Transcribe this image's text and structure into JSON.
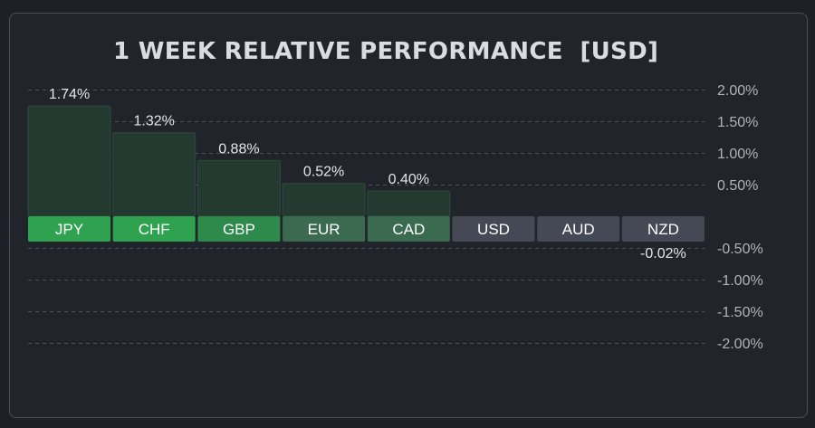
{
  "chart_data": {
    "type": "bar",
    "title": "1 WEEK RELATIVE PERFORMANCE  [USD]",
    "categories": [
      "JPY",
      "CHF",
      "GBP",
      "EUR",
      "CAD",
      "USD",
      "AUD",
      "NZD"
    ],
    "values": [
      1.74,
      1.32,
      0.88,
      0.52,
      0.4,
      0.0,
      0.0,
      -0.02
    ],
    "value_labels": [
      "1.74%",
      "1.32%",
      "0.88%",
      "0.52%",
      "0.40%",
      "",
      "",
      "-0.02%"
    ],
    "ylim": [
      -2.0,
      2.0
    ],
    "yticks": [
      2.0,
      1.5,
      1.0,
      0.5,
      -0.5,
      -1.0,
      -1.5,
      -2.0
    ],
    "ytick_labels": [
      "2.00%",
      "1.50%",
      "1.00%",
      "0.50%",
      "-0.50%",
      "-1.00%",
      "-1.50%",
      "-2.00%"
    ],
    "grid": true,
    "colors": {
      "label_strong": "#2fa24f",
      "label_medium": "#2e8a4a",
      "label_light": "#3a6a50",
      "label_neutral": "#454955",
      "bar_fill": "#243a31",
      "bar_edge": "#2c4a3b"
    }
  }
}
